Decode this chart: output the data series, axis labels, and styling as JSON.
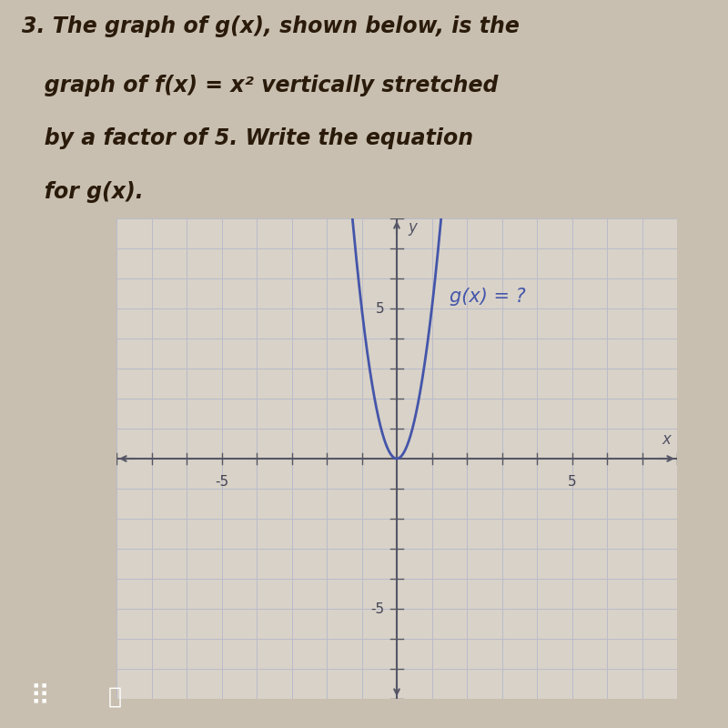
{
  "title_lines": [
    "3. The graph of g(x), shown below, is the",
    "   graph of f(x) = x² vertically stretched",
    "   by a factor of 5. Write the equation",
    "   for g(x)."
  ],
  "xlim": [
    -8,
    8
  ],
  "ylim": [
    -8,
    8
  ],
  "curve_color": "#4455aa",
  "curve_label": "g(x) = ?",
  "curve_label_color": "#4455aa",
  "axis_color": "#555566",
  "grid_color": "#bbbbcc",
  "background_color": "#c8bfb0",
  "plot_bg_color": "#d8d2c8",
  "stretch_factor": 5,
  "title_color": "#2a1a0a",
  "title_fontsize": 17,
  "x_label": "x",
  "y_label": "y",
  "tick_labels_color": "#444455",
  "toolbar_color": "#2288bb"
}
